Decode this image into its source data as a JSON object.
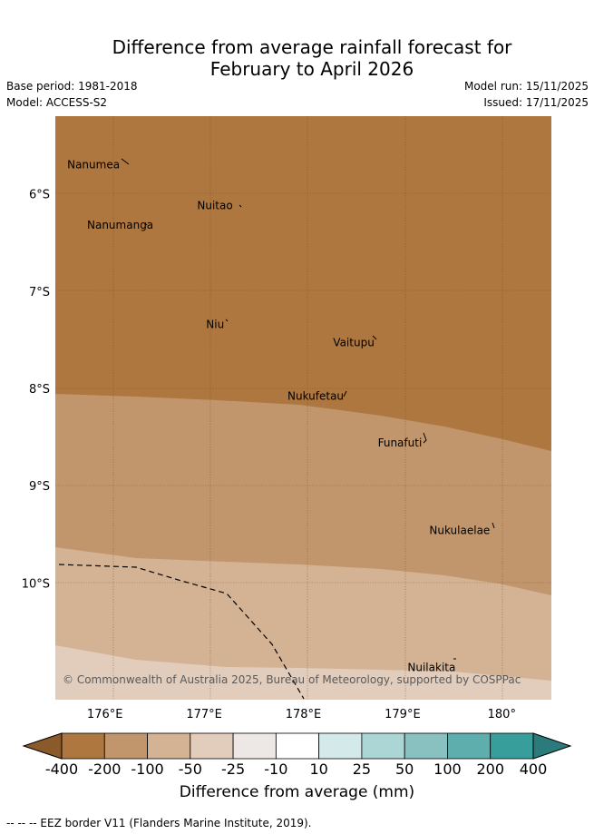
{
  "title_line1": "Difference from average rainfall forecast for",
  "title_line2": "February to April 2026",
  "base_period": "Base period: 1981-2018",
  "model": "Model: ACCESS-S2",
  "model_run": "Model run: 15/11/2025",
  "issued": "Issued: 17/11/2025",
  "copyright": "© Commonwealth of Australia 2025, Bureau of Meteorology, supported by COSPPac",
  "map": {
    "lon_range": [
      175.5,
      180.5
    ],
    "lat_range": [
      -11.2,
      -5.2
    ],
    "lat_ticks": [
      {
        "value": -6,
        "label": "6°S"
      },
      {
        "value": -7,
        "label": "7°S"
      },
      {
        "value": -8,
        "label": "8°S"
      },
      {
        "value": -9,
        "label": "9°S"
      },
      {
        "value": -10,
        "label": "10°S"
      }
    ],
    "lon_ticks": [
      {
        "value": 176,
        "label": "176°E"
      },
      {
        "value": 177,
        "label": "177°E"
      },
      {
        "value": 178,
        "label": "178°E"
      },
      {
        "value": 179,
        "label": "179°E"
      },
      {
        "value": 180,
        "label": "180°"
      }
    ],
    "places": [
      {
        "name": "Nanumea",
        "lon": 175.62,
        "lat": -5.7
      },
      {
        "name": "Nuitao",
        "lon": 176.93,
        "lat": -6.12
      },
      {
        "name": "Nanumanga",
        "lon": 175.82,
        "lat": -6.32
      },
      {
        "name": "Niu",
        "lon": 177.02,
        "lat": -7.34
      },
      {
        "name": "Vaitupu",
        "lon": 178.3,
        "lat": -7.53
      },
      {
        "name": "Nukufetau",
        "lon": 177.84,
        "lat": -8.08
      },
      {
        "name": "Funafuti",
        "lon": 178.75,
        "lat": -8.56
      },
      {
        "name": "Nukulaelae",
        "lon": 179.27,
        "lat": -9.46
      },
      {
        "name": "Nuilakita",
        "lon": 179.05,
        "lat": -10.87
      }
    ],
    "zones": [
      {
        "category": "-400 to -200",
        "color": "#ad773f"
      },
      {
        "category": "-200 to -100",
        "color": "#c1966c"
      },
      {
        "category": "-100 to -50",
        "color": "#d3b394"
      },
      {
        "category": "-50 to -25",
        "color": "#e2ccbb"
      }
    ]
  },
  "colorbar": {
    "label": "Difference from average (mm)",
    "ticks": [
      "-400",
      "-200",
      "-100",
      "-50",
      "-25",
      "-10",
      "10",
      "25",
      "50",
      "100",
      "200",
      "400"
    ],
    "colors": [
      "#ad773f",
      "#c1966c",
      "#d3b394",
      "#e2ccbb",
      "#ede8e5",
      "#ffffff",
      "#d4eaea",
      "#acd6d5",
      "#88c1c0",
      "#5eaead",
      "#379e9c"
    ],
    "low_extend_color": "#8b5a2b",
    "high_extend_color": "#2b7b7d"
  },
  "footnote": "-- --  -- EEZ border V11 (Flanders Marine Institute, 2019)."
}
